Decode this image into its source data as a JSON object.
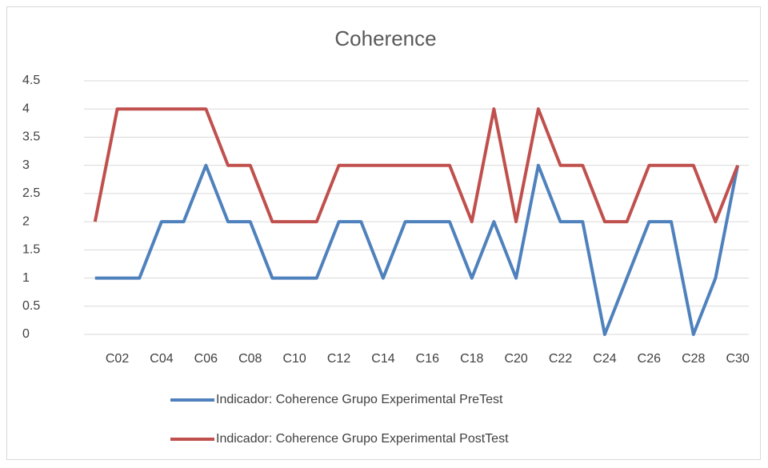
{
  "chart_data": {
    "type": "line",
    "title": "Coherence",
    "categories": [
      null,
      "C02",
      null,
      "C04",
      null,
      "C06",
      null,
      "C08",
      null,
      "C10",
      null,
      "C12",
      null,
      "C14",
      null,
      "C16",
      null,
      "C18",
      null,
      "C20",
      null,
      "C22",
      null,
      "C24",
      null,
      "C26",
      null,
      "C28",
      null,
      "C30"
    ],
    "series": [
      {
        "name": "Indicador: Coherence Grupo Experimental PreTest",
        "color": "#4f81bd",
        "values": [
          1,
          1,
          1,
          2,
          2,
          3,
          2,
          2,
          1,
          1,
          1,
          2,
          2,
          1,
          2,
          2,
          2,
          1,
          2,
          1,
          3,
          2,
          2,
          0,
          1,
          2,
          2,
          0,
          1,
          3
        ]
      },
      {
        "name": "Indicador: Coherence Grupo Experimental PostTest",
        "color": "#c0504d",
        "values": [
          2,
          4,
          4,
          4,
          4,
          4,
          3,
          3,
          2,
          2,
          2,
          3,
          3,
          3,
          3,
          3,
          3,
          2,
          4,
          2,
          4,
          3,
          3,
          2,
          2,
          3,
          3,
          3,
          2,
          3
        ]
      }
    ],
    "ylim": [
      0,
      4.5
    ],
    "yticks": [
      0,
      0.5,
      1,
      1.5,
      2,
      2.5,
      3,
      3.5,
      4,
      4.5
    ],
    "grid": true,
    "legend": "bottom"
  }
}
